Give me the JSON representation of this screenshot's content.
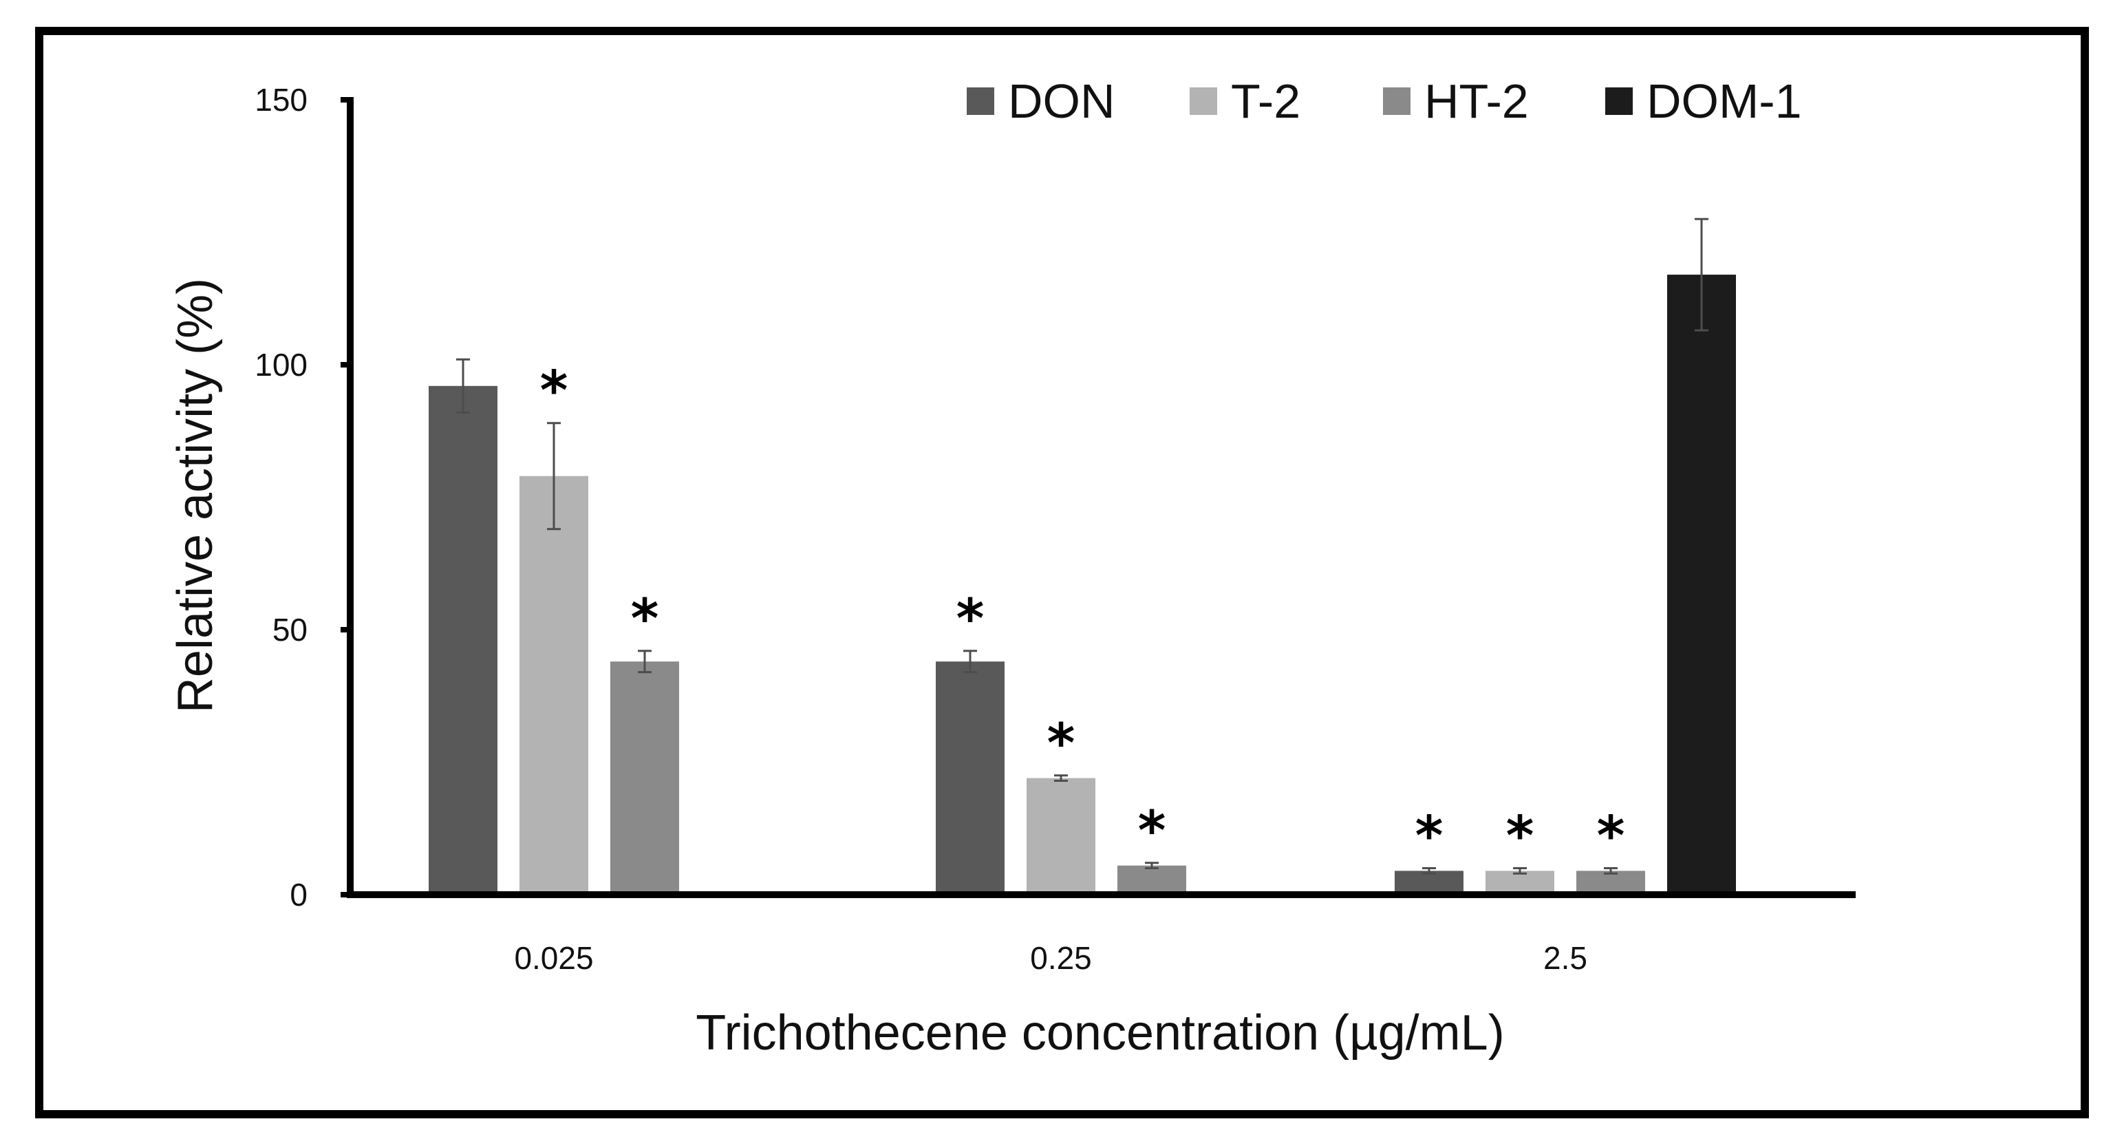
{
  "chart_data": {
    "type": "bar",
    "title": "",
    "xlabel": "Trichothecene concentration (µg/mL)",
    "ylabel": "Relative activity (%)",
    "ylim": [
      0,
      150
    ],
    "yticks": [
      0,
      50,
      100,
      150
    ],
    "categories": [
      "0.025",
      "0.25",
      "2.5"
    ],
    "legend_position": "top-right",
    "series": [
      {
        "name": "DON",
        "color": "#595959",
        "values": [
          96,
          44,
          4.5
        ],
        "errors": [
          5,
          2,
          0.5
        ],
        "significant": [
          false,
          true,
          true
        ]
      },
      {
        "name": "T-2",
        "color": "#b3b3b3",
        "values": [
          79,
          22,
          4.5
        ],
        "errors": [
          10,
          0.5,
          0.5
        ],
        "significant": [
          true,
          true,
          true
        ]
      },
      {
        "name": "HT-2",
        "color": "#8a8a8a",
        "values": [
          44,
          5.5,
          4.5
        ],
        "errors": [
          2,
          0.5,
          0.5
        ],
        "significant": [
          true,
          true,
          true
        ]
      },
      {
        "name": "DOM-1",
        "color": "#1c1c1c",
        "values": [
          null,
          null,
          117
        ],
        "errors": [
          null,
          null,
          10.5
        ],
        "significant": [
          false,
          false,
          false
        ]
      }
    ],
    "significance_marker": "*"
  }
}
